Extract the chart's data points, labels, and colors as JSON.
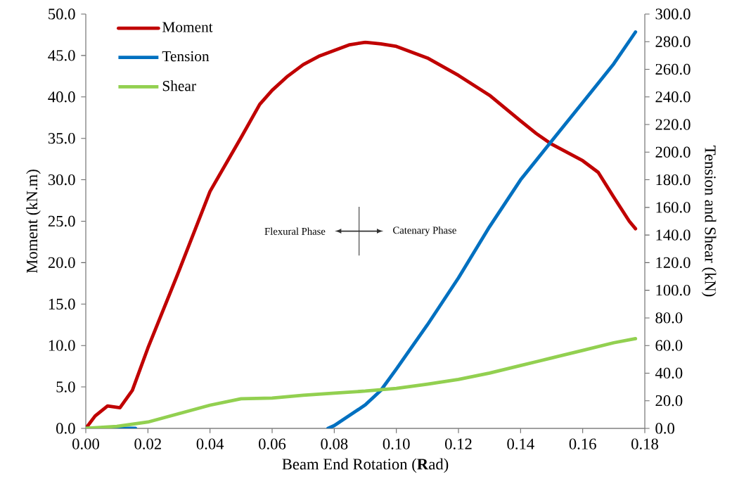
{
  "chart_data": {
    "type": "line",
    "xlabel": "Beam End Rotation (**R**ad)",
    "ylabel": "Moment (kN.m)",
    "y2label": "Tension and Shear (kN)",
    "xlim": [
      0,
      0.18
    ],
    "ylim": [
      0,
      50
    ],
    "y2lim": [
      0,
      300
    ],
    "xticks": [
      {
        "value": 0,
        "label": "0.00"
      },
      {
        "value": 0.02,
        "label": "0.02"
      },
      {
        "value": 0.04,
        "label": "0.04"
      },
      {
        "value": 0.06,
        "label": "0.06"
      },
      {
        "value": 0.08,
        "label": "0.08"
      },
      {
        "value": 0.1,
        "label": "0.10"
      },
      {
        "value": 0.12,
        "label": "0.12"
      },
      {
        "value": 0.14,
        "label": "0.14"
      },
      {
        "value": 0.16,
        "label": "0.16"
      },
      {
        "value": 0.18,
        "label": "0.18"
      }
    ],
    "yticks": [
      {
        "value": 0,
        "label": "0.0"
      },
      {
        "value": 5,
        "label": "5.0"
      },
      {
        "value": 10,
        "label": "10.0"
      },
      {
        "value": 15,
        "label": "15.0"
      },
      {
        "value": 20,
        "label": "20.0"
      },
      {
        "value": 25,
        "label": "25.0"
      },
      {
        "value": 30,
        "label": "30.0"
      },
      {
        "value": 35,
        "label": "35.0"
      },
      {
        "value": 40,
        "label": "40.0"
      },
      {
        "value": 45,
        "label": "45.0"
      },
      {
        "value": 50,
        "label": "50.0"
      }
    ],
    "y2ticks": [
      {
        "value": 0,
        "label": "0.0"
      },
      {
        "value": 20,
        "label": "20.0"
      },
      {
        "value": 40,
        "label": "40.0"
      },
      {
        "value": 60,
        "label": "60.0"
      },
      {
        "value": 80,
        "label": "80.0"
      },
      {
        "value": 100,
        "label": "100.0"
      },
      {
        "value": 120,
        "label": "120.0"
      },
      {
        "value": 140,
        "label": "140.0"
      },
      {
        "value": 160,
        "label": "160.0"
      },
      {
        "value": 180,
        "label": "180.0"
      },
      {
        "value": 200,
        "label": "200.0"
      },
      {
        "value": 220,
        "label": "220.0"
      },
      {
        "value": 240,
        "label": "240.0"
      },
      {
        "value": 260,
        "label": "260.0"
      },
      {
        "value": 280,
        "label": "280.0"
      },
      {
        "value": 300,
        "label": "300.0"
      }
    ],
    "legend": "top left",
    "grid": false,
    "marker": "none",
    "annotations": [
      "Flexural Phase",
      "Catenary Phase"
    ],
    "series": [
      {
        "name": "Moment",
        "color": "#c00000",
        "x": [
          0,
          0.003,
          0.007,
          0.011,
          0.015,
          0.02,
          0.03,
          0.04,
          0.05,
          0.056,
          0.06,
          0.065,
          0.07,
          0.075,
          0.08,
          0.085,
          0.09,
          0.095,
          0.1,
          0.11,
          0.12,
          0.13,
          0.14,
          0.145,
          0.15,
          0.16,
          0.165,
          0.17,
          0.175,
          0.177
        ],
        "values": [
          0,
          1.5,
          2.7,
          2.5,
          4.6,
          9.7,
          19,
          28.6,
          35.1,
          39.1,
          40.8,
          42.5,
          43.9,
          44.9,
          45.6,
          46.3,
          46.6,
          46.4,
          46.1,
          44.7,
          42.6,
          40.2,
          37.1,
          35.6,
          34.3,
          32.3,
          30.9,
          27.9,
          25,
          24.1
        ]
      },
      {
        "name": "Tension",
        "color": "#0070c0",
        "axis": "y2",
        "x": [
          0,
          0.005,
          0.01,
          0.016,
          0.05,
          0.078,
          0.08,
          0.09,
          0.095,
          0.1,
          0.11,
          0.12,
          0.13,
          0.14,
          0.15,
          0.16,
          0.17,
          0.177
        ],
        "values": [
          0,
          0,
          0,
          0,
          null,
          0,
          2,
          17,
          27.5,
          43,
          75,
          109,
          146,
          180,
          208,
          236,
          264,
          287
        ]
      },
      {
        "name": "Shear",
        "color": "#92d050",
        "axis": "y2",
        "x": [
          0,
          0.01,
          0.02,
          0.03,
          0.04,
          0.05,
          0.06,
          0.07,
          0.08,
          0.09,
          0.1,
          0.11,
          0.12,
          0.13,
          0.14,
          0.15,
          0.16,
          0.17,
          0.177
        ],
        "values": [
          0,
          1.5,
          4.6,
          10.7,
          16.8,
          21.4,
          22,
          24,
          25.5,
          27,
          29,
          32,
          35.5,
          40,
          45.5,
          51,
          56.5,
          62,
          65
        ]
      }
    ]
  }
}
